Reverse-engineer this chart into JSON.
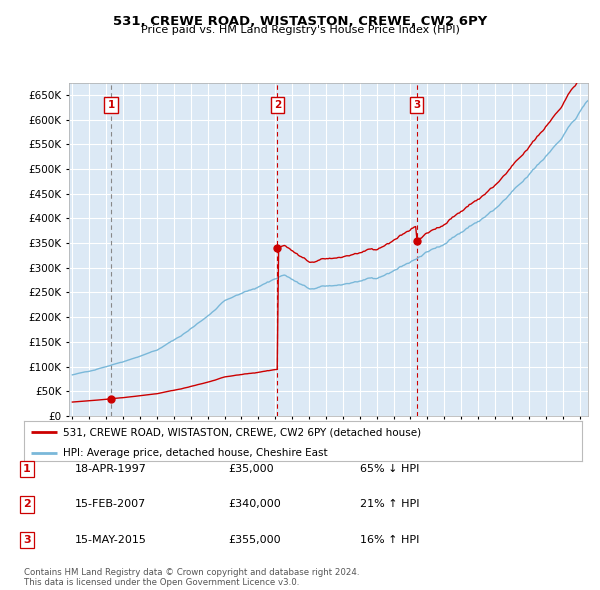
{
  "title": "531, CREWE ROAD, WISTASTON, CREWE, CW2 6PY",
  "subtitle": "Price paid vs. HM Land Registry's House Price Index (HPI)",
  "plot_bg_color": "#dce9f5",
  "grid_color": "#ffffff",
  "hpi_line_color": "#7ab8d9",
  "price_line_color": "#cc0000",
  "ylim": [
    0,
    675000
  ],
  "yticks": [
    0,
    50000,
    100000,
    150000,
    200000,
    250000,
    300000,
    350000,
    400000,
    450000,
    500000,
    550000,
    600000,
    650000
  ],
  "ytick_labels": [
    "£0",
    "£50K",
    "£100K",
    "£150K",
    "£200K",
    "£250K",
    "£300K",
    "£350K",
    "£400K",
    "£450K",
    "£500K",
    "£550K",
    "£600K",
    "£650K"
  ],
  "xmin": 1994.8,
  "xmax": 2025.5,
  "sale_dates": [
    1997.29,
    2007.12,
    2015.37
  ],
  "sale_prices": [
    35000,
    340000,
    355000
  ],
  "sale_labels": [
    "1",
    "2",
    "3"
  ],
  "legend_line1": "531, CREWE ROAD, WISTASTON, CREWE, CW2 6PY (detached house)",
  "legend_line2": "HPI: Average price, detached house, Cheshire East",
  "table_rows": [
    [
      "1",
      "18-APR-1997",
      "£35,000",
      "65% ↓ HPI"
    ],
    [
      "2",
      "15-FEB-2007",
      "£340,000",
      "21% ↑ HPI"
    ],
    [
      "3",
      "15-MAY-2015",
      "£355,000",
      "16% ↑ HPI"
    ]
  ],
  "footer": "Contains HM Land Registry data © Crown copyright and database right 2024.\nThis data is licensed under the Open Government Licence v3.0."
}
